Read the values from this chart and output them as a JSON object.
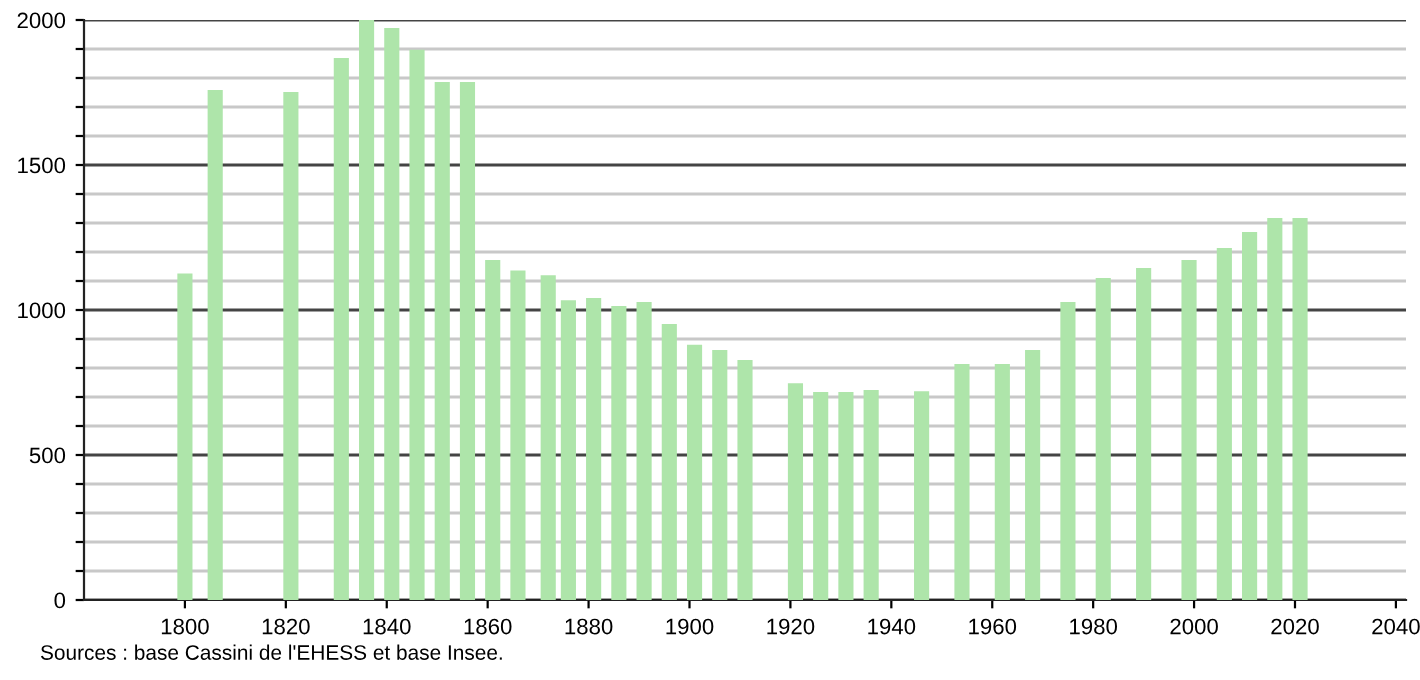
{
  "chart_data": {
    "type": "bar",
    "x": [
      1800,
      1806,
      1821,
      1831,
      1836,
      1841,
      1846,
      1851,
      1856,
      1861,
      1866,
      1872,
      1876,
      1881,
      1886,
      1891,
      1896,
      1901,
      1906,
      1911,
      1921,
      1926,
      1931,
      1936,
      1946,
      1954,
      1962,
      1968,
      1975,
      1982,
      1990,
      1999,
      2006,
      2011,
      2016,
      2021
    ],
    "values": [
      1126,
      1759,
      1752,
      1869,
      2000,
      1972,
      1897,
      1786,
      1786,
      1172,
      1136,
      1120,
      1034,
      1041,
      1014,
      1028,
      952,
      880,
      862,
      828,
      747,
      717,
      717,
      724,
      720,
      814,
      814,
      862,
      1028,
      1110,
      1145,
      1172,
      1214,
      1269,
      1317,
      1317
    ],
    "color": "#aee5aa",
    "xlim": [
      1780,
      2042
    ],
    "xticks": [
      1800,
      1820,
      1840,
      1860,
      1880,
      1900,
      1920,
      1940,
      1960,
      1980,
      2000,
      2020,
      2040
    ],
    "ylim": [
      0,
      2000
    ],
    "yticks": [
      0,
      {
        "value": 100,
        "label": null
      },
      {
        "value": 200,
        "label": null
      },
      {
        "value": 300,
        "label": null
      },
      {
        "value": 400,
        "label": null
      },
      500,
      {
        "value": 600,
        "label": null
      },
      {
        "value": 700,
        "label": null
      },
      {
        "value": 800,
        "label": null
      },
      {
        "value": 900,
        "label": null
      },
      1000,
      {
        "value": 1100,
        "label": null
      },
      {
        "value": 1200,
        "label": null
      },
      {
        "value": 1300,
        "label": null
      },
      {
        "value": 1400,
        "label": null
      },
      1500,
      {
        "value": 1600,
        "label": null
      },
      {
        "value": 1700,
        "label": null
      },
      {
        "value": 1800,
        "label": null
      },
      {
        "value": 1900,
        "label": null
      },
      2000
    ],
    "grid": "y",
    "annotations": [
      "Sources : base Cassini de l'EHESS et base Insee."
    ]
  }
}
